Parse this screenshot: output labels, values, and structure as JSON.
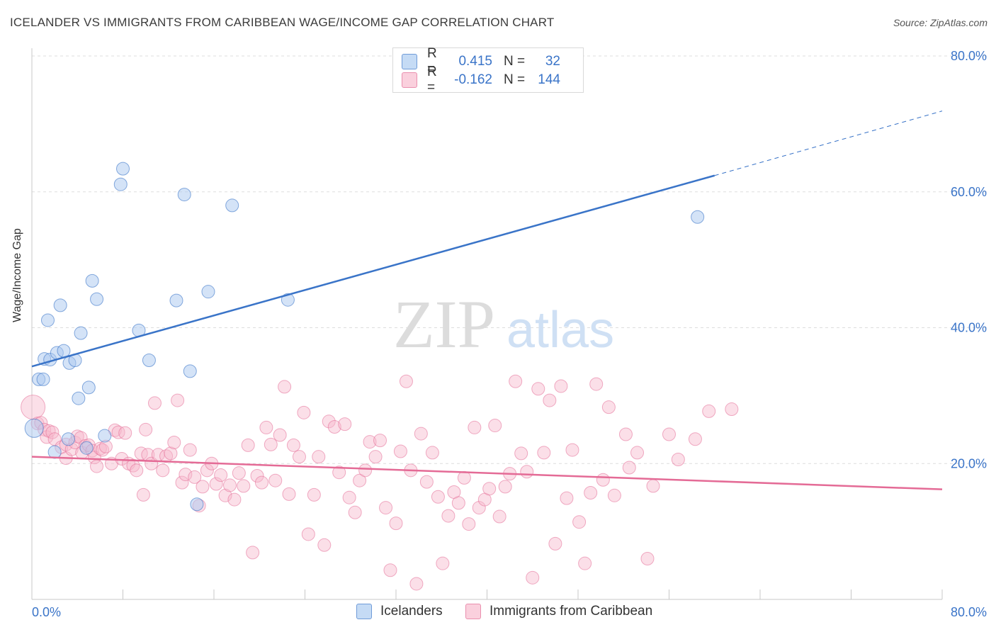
{
  "header": {
    "title": "ICELANDER VS IMMIGRANTS FROM CARIBBEAN WAGE/INCOME GAP CORRELATION CHART",
    "source": "Source: ZipAtlas.com"
  },
  "watermark": {
    "zip": "ZIP",
    "atlas": "atlas"
  },
  "legend": {
    "rows": [
      {
        "r_label": "R =",
        "r_value": "0.415",
        "n_label": "N =",
        "n_value": "32",
        "color": "#a9c8f0"
      },
      {
        "r_label": "R =",
        "r_value": "-0.162",
        "n_label": "N =",
        "n_value": "144",
        "color": "#f6b7cb"
      }
    ]
  },
  "bottom_legend": {
    "icelanders": "Icelanders",
    "caribbean": "Immigrants from Caribbean"
  },
  "chart_data": {
    "type": "scatter",
    "title": "ICELANDER VS IMMIGRANTS FROM CARIBBEAN WAGE/INCOME GAP CORRELATION CHART",
    "xlabel": "",
    "ylabel": "Wage/Income Gap",
    "xlim": [
      0,
      80
    ],
    "ylim": [
      0,
      80
    ],
    "x_tick_labels": [
      "0.0%",
      "80.0%"
    ],
    "y_tick_labels": [
      "20.0%",
      "40.0%",
      "60.0%",
      "80.0%"
    ],
    "y_ticks": [
      20,
      40,
      60,
      80
    ],
    "grid": "horizontal dashed",
    "legend_position": "top-center",
    "colors": {
      "icelanders": "#3a74c8",
      "icelanders_fill": "#a9c8f0",
      "caribbean": "#e46b96",
      "caribbean_fill": "#f6b7cb",
      "tick_label": "#3a74c8"
    },
    "series": [
      {
        "name": "Icelanders",
        "points": [
          [
            0.2,
            25.2
          ],
          [
            0.6,
            32.4
          ],
          [
            1.0,
            32.4
          ],
          [
            1.1,
            35.4
          ],
          [
            1.4,
            41.1
          ],
          [
            1.6,
            35.3
          ],
          [
            2.0,
            21.7
          ],
          [
            2.2,
            36.3
          ],
          [
            2.5,
            43.3
          ],
          [
            2.8,
            36.6
          ],
          [
            3.2,
            23.6
          ],
          [
            3.3,
            34.8
          ],
          [
            3.8,
            35.2
          ],
          [
            4.1,
            29.6
          ],
          [
            4.3,
            39.2
          ],
          [
            4.8,
            22.3
          ],
          [
            5.0,
            31.2
          ],
          [
            5.3,
            46.9
          ],
          [
            5.7,
            44.2
          ],
          [
            6.4,
            24.1
          ],
          [
            7.8,
            61.1
          ],
          [
            8.0,
            63.4
          ],
          [
            9.4,
            39.6
          ],
          [
            10.3,
            35.2
          ],
          [
            12.7,
            44.0
          ],
          [
            13.4,
            59.6
          ],
          [
            13.9,
            33.6
          ],
          [
            14.5,
            14.0
          ],
          [
            15.5,
            45.3
          ],
          [
            17.6,
            58.0
          ],
          [
            22.5,
            44.1
          ],
          [
            58.5,
            56.3
          ]
        ],
        "trend": {
          "x0": 0,
          "y0": 34.3,
          "x1": 60,
          "y1": 62.4,
          "extend_to_x": 80,
          "extend_to_y": 71.9
        }
      },
      {
        "name": "Immigrants from Caribbean",
        "points": [
          [
            0.1,
            28.3
          ],
          [
            0.5,
            25.9
          ],
          [
            0.8,
            26.0
          ],
          [
            1.1,
            25.0
          ],
          [
            1.3,
            23.9
          ],
          [
            1.5,
            24.8
          ],
          [
            1.8,
            24.6
          ],
          [
            2.0,
            23.6
          ],
          [
            2.6,
            22.4
          ],
          [
            3.0,
            22.8
          ],
          [
            3.0,
            20.8
          ],
          [
            3.5,
            22.1
          ],
          [
            3.8,
            23.1
          ],
          [
            4.0,
            24.0
          ],
          [
            4.3,
            23.8
          ],
          [
            4.4,
            21.6
          ],
          [
            4.7,
            22.6
          ],
          [
            5.0,
            22.7
          ],
          [
            5.3,
            21.9
          ],
          [
            5.5,
            20.9
          ],
          [
            5.7,
            19.6
          ],
          [
            6.0,
            22.2
          ],
          [
            6.2,
            22.0
          ],
          [
            6.5,
            22.5
          ],
          [
            7.0,
            20.0
          ],
          [
            7.3,
            24.9
          ],
          [
            7.6,
            24.6
          ],
          [
            7.9,
            20.7
          ],
          [
            8.2,
            24.5
          ],
          [
            8.5,
            20.0
          ],
          [
            8.9,
            19.7
          ],
          [
            9.2,
            19.0
          ],
          [
            9.6,
            21.5
          ],
          [
            9.8,
            15.4
          ],
          [
            10.0,
            25.0
          ],
          [
            10.2,
            21.3
          ],
          [
            10.5,
            20.0
          ],
          [
            10.8,
            28.9
          ],
          [
            11.1,
            21.3
          ],
          [
            11.5,
            19.0
          ],
          [
            11.8,
            21.1
          ],
          [
            12.2,
            21.5
          ],
          [
            12.5,
            23.1
          ],
          [
            12.8,
            29.3
          ],
          [
            13.2,
            17.2
          ],
          [
            13.5,
            18.4
          ],
          [
            13.9,
            22.0
          ],
          [
            14.3,
            18.0
          ],
          [
            14.7,
            13.8
          ],
          [
            15.0,
            16.6
          ],
          [
            15.4,
            19.0
          ],
          [
            15.8,
            20.0
          ],
          [
            16.2,
            17.0
          ],
          [
            16.6,
            18.3
          ],
          [
            17.0,
            15.3
          ],
          [
            17.4,
            16.8
          ],
          [
            17.8,
            14.7
          ],
          [
            18.2,
            18.6
          ],
          [
            18.6,
            16.7
          ],
          [
            19.0,
            22.7
          ],
          [
            19.4,
            6.9
          ],
          [
            19.8,
            18.2
          ],
          [
            20.2,
            17.2
          ],
          [
            20.6,
            25.3
          ],
          [
            21.0,
            22.8
          ],
          [
            21.4,
            17.5
          ],
          [
            21.8,
            24.2
          ],
          [
            22.2,
            31.3
          ],
          [
            22.6,
            15.5
          ],
          [
            23.0,
            22.7
          ],
          [
            23.5,
            21.0
          ],
          [
            23.9,
            27.5
          ],
          [
            24.3,
            9.6
          ],
          [
            24.8,
            15.4
          ],
          [
            25.2,
            21.0
          ],
          [
            25.7,
            8.0
          ],
          [
            26.1,
            26.2
          ],
          [
            26.6,
            25.4
          ],
          [
            27.0,
            18.7
          ],
          [
            27.5,
            25.8
          ],
          [
            27.9,
            15.0
          ],
          [
            28.4,
            12.8
          ],
          [
            28.8,
            17.5
          ],
          [
            29.3,
            19.0
          ],
          [
            29.7,
            23.2
          ],
          [
            30.2,
            21.0
          ],
          [
            30.6,
            23.4
          ],
          [
            31.1,
            13.5
          ],
          [
            31.5,
            4.3
          ],
          [
            32.0,
            11.2
          ],
          [
            32.4,
            21.8
          ],
          [
            32.9,
            32.1
          ],
          [
            33.3,
            19.0
          ],
          [
            33.8,
            2.3
          ],
          [
            34.2,
            24.4
          ],
          [
            34.7,
            17.3
          ],
          [
            35.2,
            21.6
          ],
          [
            35.7,
            15.1
          ],
          [
            36.1,
            5.3
          ],
          [
            36.6,
            12.3
          ],
          [
            37.1,
            15.8
          ],
          [
            37.5,
            14.2
          ],
          [
            38.0,
            17.9
          ],
          [
            38.4,
            11.1
          ],
          [
            38.9,
            25.3
          ],
          [
            39.3,
            13.5
          ],
          [
            39.8,
            14.7
          ],
          [
            40.2,
            16.3
          ],
          [
            40.7,
            25.6
          ],
          [
            41.1,
            12.2
          ],
          [
            41.6,
            16.6
          ],
          [
            42.0,
            18.5
          ],
          [
            42.5,
            32.1
          ],
          [
            43.0,
            21.5
          ],
          [
            43.5,
            18.8
          ],
          [
            44.0,
            3.2
          ],
          [
            44.5,
            31.0
          ],
          [
            45.0,
            21.6
          ],
          [
            45.5,
            29.3
          ],
          [
            46.0,
            8.2
          ],
          [
            46.5,
            31.4
          ],
          [
            47.0,
            14.9
          ],
          [
            47.5,
            22.0
          ],
          [
            48.1,
            11.4
          ],
          [
            48.6,
            5.3
          ],
          [
            49.1,
            15.7
          ],
          [
            49.6,
            31.7
          ],
          [
            50.2,
            17.6
          ],
          [
            50.7,
            28.3
          ],
          [
            51.2,
            15.3
          ],
          [
            52.2,
            24.3
          ],
          [
            52.5,
            19.4
          ],
          [
            53.2,
            21.6
          ],
          [
            54.1,
            6.0
          ],
          [
            54.6,
            16.7
          ],
          [
            56.0,
            24.3
          ],
          [
            56.8,
            20.6
          ],
          [
            58.3,
            23.6
          ],
          [
            59.5,
            27.7
          ],
          [
            61.5,
            28.0
          ]
        ],
        "trend": {
          "x0": 0,
          "y0": 21.0,
          "x1": 80,
          "y1": 16.2
        }
      }
    ]
  }
}
